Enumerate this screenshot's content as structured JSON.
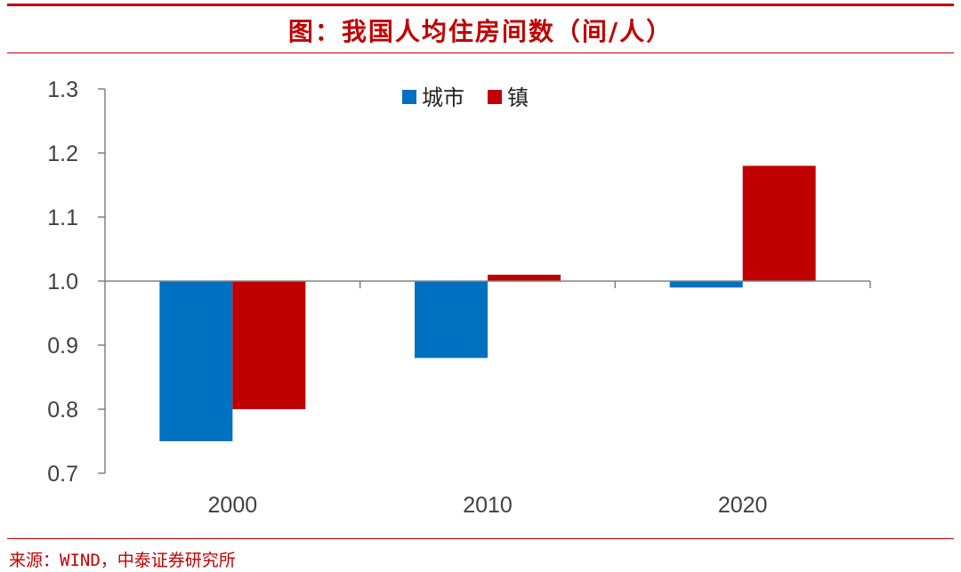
{
  "title": "图：我国人均住房间数（间/人）",
  "source": "来源：WIND，中泰证券研究所",
  "chart_data": {
    "type": "bar",
    "categories": [
      "2000",
      "2010",
      "2020"
    ],
    "series": [
      {
        "name": "城市",
        "color": "#0070c0",
        "values": [
          0.75,
          0.88,
          0.99
        ]
      },
      {
        "name": "镇",
        "color": "#c00000",
        "values": [
          0.8,
          1.01,
          1.18
        ]
      }
    ],
    "baseline": 1.0,
    "ylim": [
      0.7,
      1.3
    ],
    "yticks": [
      "0.7",
      "0.8",
      "0.9",
      "1.0",
      "1.1",
      "1.2",
      "1.3"
    ],
    "legend_position": "top-center",
    "grid": false
  }
}
